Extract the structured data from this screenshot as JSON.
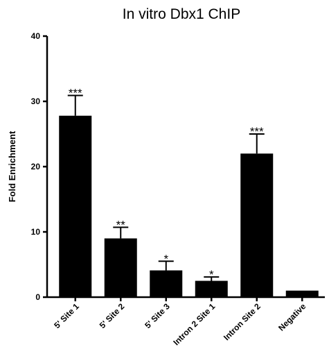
{
  "chart_data": {
    "type": "bar",
    "title": "In vitro Dbx1 ChIP",
    "xlabel": "",
    "ylabel": "Fold Enrichment",
    "ylim": [
      0,
      40
    ],
    "yticks": [
      0,
      10,
      20,
      30,
      40
    ],
    "categories": [
      "5' Site 1",
      "5' Site 2",
      "5' Site 3",
      "Intron 2 Site 1",
      "Intron Site 2",
      "Negative"
    ],
    "values": [
      27.8,
      9.0,
      4.1,
      2.5,
      22.0,
      1.0
    ],
    "error_upper": [
      3.1,
      1.7,
      1.4,
      0.6,
      3.0,
      0
    ],
    "annotations": [
      "***",
      "**",
      "*",
      "*",
      "***",
      ""
    ],
    "bar_color": "#000000",
    "grid": false
  }
}
